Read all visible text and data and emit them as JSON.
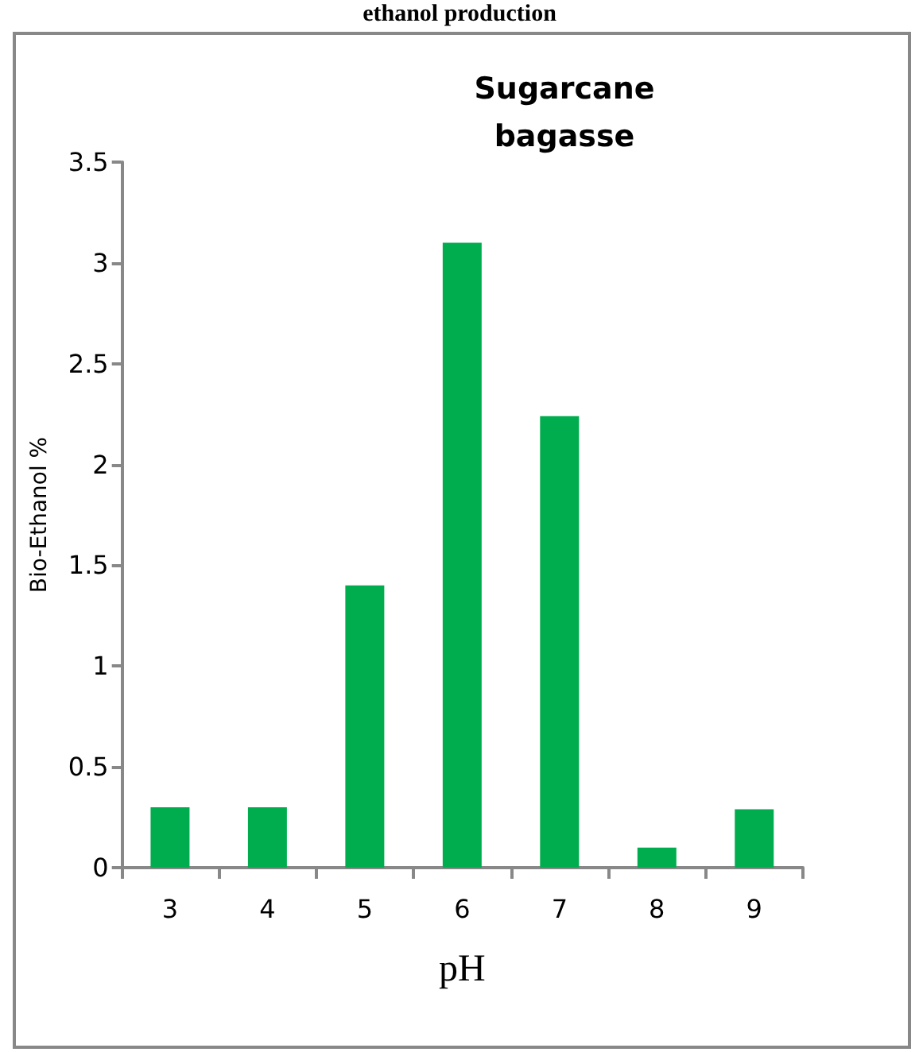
{
  "chart_data": {
    "type": "bar",
    "title": "Sugarcane\nbagasse",
    "xlabel": "pH",
    "ylabel": "Bio-Ethanol %",
    "annotations": [
      "ethanol production"
    ],
    "categories": [
      "3",
      "4",
      "5",
      "6",
      "7",
      "8",
      "9"
    ],
    "values": [
      0.3,
      0.3,
      1.4,
      3.1,
      2.24,
      0.1,
      0.29
    ],
    "color": "#00ad4e",
    "ylim": [
      0,
      3.5
    ],
    "yticks": [
      0,
      0.5,
      1,
      1.5,
      2,
      2.5,
      3,
      3.5
    ],
    "grid": false
  }
}
